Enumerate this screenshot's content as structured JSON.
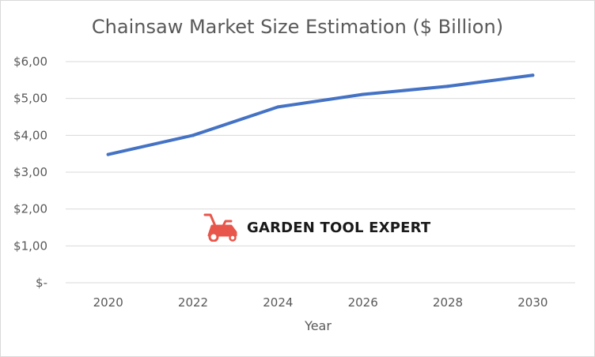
{
  "chart_data": {
    "type": "line",
    "title": "Chainsaw Market Size Estimation ($ Billion)",
    "xlabel": "Year",
    "ylabel": "",
    "x": [
      2020,
      2022,
      2024,
      2026,
      2028,
      2030
    ],
    "x_tick_labels": [
      "2020",
      "2022",
      "2024",
      "2026",
      "2028",
      "2030"
    ],
    "y_tick_labels": [
      "$-",
      "$1,00",
      "$2,00",
      "$3,00",
      "$4,00",
      "$5,00",
      "$6,00"
    ],
    "ylim": [
      0,
      6
    ],
    "grid": true,
    "series": [
      {
        "values": [
          3.48,
          4.0,
          4.77,
          5.11,
          5.33,
          5.63
        ],
        "color": "#4472c4"
      }
    ]
  },
  "watermark": {
    "text": "GARDEN TOOL EXPERT",
    "icon": "lawn-mower-icon",
    "icon_color": "#e8564b"
  },
  "colors": {
    "gridline": "#d9d9d9",
    "text": "#595959"
  }
}
